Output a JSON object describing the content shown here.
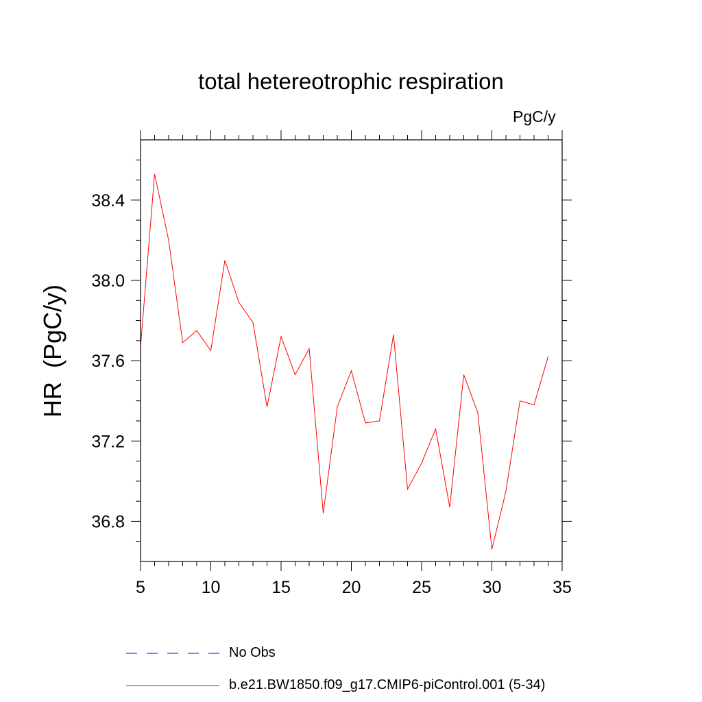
{
  "chart_data": {
    "type": "line",
    "title": "total hetereotrophic respiration",
    "units_label": "PgC/y",
    "ylabel": "HR  (PgC/y)",
    "xlabel": "",
    "xlim": [
      5,
      35
    ],
    "ylim": [
      36.6,
      38.7
    ],
    "xticks": [
      5,
      10,
      15,
      20,
      25,
      30,
      35
    ],
    "yticks": [
      36.8,
      37.2,
      37.6,
      38.0,
      38.4
    ],
    "ytick_labels": [
      "36.8",
      "37.2",
      "37.6",
      "38.0",
      "38.4"
    ],
    "grid": false,
    "series": [
      {
        "name": "b.e21.BW1850.f09_g17.CMIP6-piControl.001 (5-34)",
        "color": "#ff0000",
        "style": "solid",
        "x": [
          5,
          6,
          7,
          8,
          9,
          10,
          11,
          12,
          13,
          14,
          15,
          16,
          17,
          18,
          19,
          20,
          21,
          22,
          23,
          24,
          25,
          26,
          27,
          28,
          29,
          30,
          31,
          32,
          33,
          34
        ],
        "values": [
          37.67,
          38.53,
          38.2,
          37.69,
          37.75,
          37.65,
          38.1,
          37.89,
          37.79,
          37.37,
          37.72,
          37.53,
          37.66,
          36.84,
          37.37,
          37.55,
          37.29,
          37.3,
          37.73,
          36.96,
          37.09,
          37.26,
          36.87,
          37.53,
          37.34,
          36.66,
          36.95,
          37.4,
          37.38,
          37.62
        ]
      }
    ],
    "legend": [
      {
        "label": "No Obs",
        "color": "#0000ff",
        "style": "dashed"
      },
      {
        "label": "b.e21.BW1850.f09_g17.CMIP6-piControl.001 (5-34)",
        "color": "#ff0000",
        "style": "solid"
      }
    ]
  }
}
